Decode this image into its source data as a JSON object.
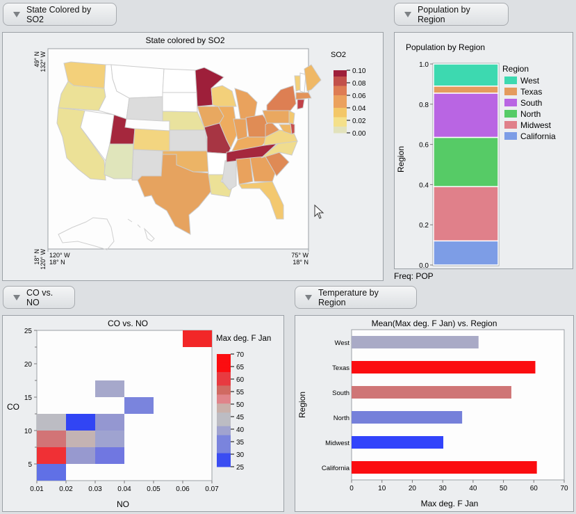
{
  "panels": {
    "so2": {
      "button_label": "State Colored by SO2",
      "title": "State colored by SO2"
    },
    "population": {
      "button_label": "Population by Region",
      "title": "Population by Region",
      "footer": "Freq: POP"
    },
    "co_no": {
      "button_label": "CO vs. NO",
      "title": "CO vs. NO"
    },
    "temperature": {
      "button_label": "Temperature by Region",
      "title": "Mean(Max deg. F Jan) vs. Region"
    }
  },
  "chart_data": [
    {
      "type": "map",
      "title": "State colored by SO2",
      "corner_labels": {
        "top_left": [
          "49° N",
          "132° W"
        ],
        "bottom_left": [
          "18° N",
          "120° W"
        ],
        "bottom_x_left": [
          "120° W",
          "18° N"
        ],
        "bottom_x_right": [
          "75° W",
          "18° N"
        ]
      },
      "legend": {
        "title": "SO2",
        "ticks": [
          "0.10",
          "0.08",
          "0.06",
          "0.04",
          "0.02",
          "0.00"
        ],
        "range": [
          0.0,
          0.1
        ],
        "colors": [
          "#e2e2bc",
          "#f4e08a",
          "#f3c768",
          "#eba15d",
          "#de7c53",
          "#c2504a",
          "#9e1f3a"
        ]
      },
      "states": [
        {
          "name": "WA",
          "so2": 0.035,
          "color": "#f3d07a"
        },
        {
          "name": "OR",
          "so2": 0.015,
          "color": "#ece197"
        },
        {
          "name": "CA",
          "so2": 0.015,
          "color": "#ece197"
        },
        {
          "name": "NV",
          "so2": null,
          "color": "#ffffff"
        },
        {
          "name": "ID",
          "so2": null,
          "color": "#ffffff"
        },
        {
          "name": "MT",
          "so2": null,
          "color": "#ffffff"
        },
        {
          "name": "WY",
          "so2": null,
          "color": "#dcdcdc"
        },
        {
          "name": "UT",
          "so2": 0.095,
          "color": "#a5273d"
        },
        {
          "name": "AZ",
          "so2": 0.005,
          "color": "#e0e5bb"
        },
        {
          "name": "CO",
          "so2": 0.03,
          "color": "#f3d580"
        },
        {
          "name": "NM",
          "so2": null,
          "color": "#dcdcdc"
        },
        {
          "name": "ND",
          "so2": null,
          "color": "#ffffff"
        },
        {
          "name": "SD",
          "so2": null,
          "color": "#ffffff"
        },
        {
          "name": "NE",
          "so2": 0.015,
          "color": "#e9e29e"
        },
        {
          "name": "KS",
          "so2": null,
          "color": "#dcdcdc"
        },
        {
          "name": "OK",
          "so2": 0.045,
          "color": "#ecb466"
        },
        {
          "name": "TX",
          "so2": 0.055,
          "color": "#e6a35f"
        },
        {
          "name": "MN",
          "so2": 0.1,
          "color": "#9e1f3a"
        },
        {
          "name": "IA",
          "so2": 0.055,
          "color": "#e8a860"
        },
        {
          "name": "MO",
          "so2": 0.09,
          "color": "#a73543"
        },
        {
          "name": "AR",
          "so2": null,
          "color": "#ffffff"
        },
        {
          "name": "LA",
          "so2": 0.015,
          "color": "#ece197"
        },
        {
          "name": "WI",
          "so2": 0.03,
          "color": "#f3d07a"
        },
        {
          "name": "IL",
          "so2": 0.05,
          "color": "#eeac5f"
        },
        {
          "name": "MS",
          "so2": null,
          "color": "#dcdcdc"
        },
        {
          "name": "MI",
          "so2": 0.055,
          "color": "#e9a25d"
        },
        {
          "name": "IN",
          "so2": 0.055,
          "color": "#e9a25d"
        },
        {
          "name": "KY",
          "so2": 0.05,
          "color": "#eeac5f"
        },
        {
          "name": "TN",
          "so2": 0.095,
          "color": "#a5273d"
        },
        {
          "name": "AL",
          "so2": 0.055,
          "color": "#e9a25d"
        },
        {
          "name": "OH",
          "so2": 0.065,
          "color": "#e08c55"
        },
        {
          "name": "GA",
          "so2": 0.055,
          "color": "#e9a25d"
        },
        {
          "name": "FL",
          "so2": 0.035,
          "color": "#f3c86f"
        },
        {
          "name": "SC",
          "so2": 0.065,
          "color": "#df8a55"
        },
        {
          "name": "NC",
          "so2": 0.02,
          "color": "#f0dc8e"
        },
        {
          "name": "VA",
          "so2": 0.025,
          "color": "#f2d785"
        },
        {
          "name": "WV",
          "so2": 0.06,
          "color": "#e3935a"
        },
        {
          "name": "PA",
          "so2": 0.055,
          "color": "#eaa860"
        },
        {
          "name": "NY",
          "so2": 0.07,
          "color": "#dd7f53"
        },
        {
          "name": "VT",
          "so2": 0.03,
          "color": "#f3d07a"
        },
        {
          "name": "NH",
          "so2": null,
          "color": "#ffffff"
        },
        {
          "name": "ME",
          "so2": 0.045,
          "color": "#efb866"
        },
        {
          "name": "MA",
          "so2": 0.06,
          "color": "#e3935a"
        },
        {
          "name": "CT",
          "so2": 0.085,
          "color": "#c14148"
        },
        {
          "name": "NJ",
          "so2": 0.035,
          "color": "#f3c86f"
        },
        {
          "name": "MD",
          "so2": 0.045,
          "color": "#efb866"
        },
        {
          "name": "DE",
          "so2": 0.08,
          "color": "#c94f4c"
        }
      ]
    },
    {
      "type": "stacked-bar",
      "title": "Population by Region",
      "ylabel": "Region",
      "footer": "Freq: POP",
      "ylim": [
        0,
        1.0
      ],
      "yticks": [
        "0.0",
        "0.2",
        "0.4",
        "0.6",
        "0.8",
        "1.0"
      ],
      "legend_title": "Region",
      "series": [
        {
          "name": "California",
          "share": 0.12,
          "color": "#7d9de6"
        },
        {
          "name": "Midwest",
          "share": 0.27,
          "color": "#e0808a"
        },
        {
          "name": "North",
          "share": 0.245,
          "color": "#56cb66"
        },
        {
          "name": "South",
          "share": 0.22,
          "color": "#b965e3"
        },
        {
          "name": "Texas",
          "share": 0.035,
          "color": "#e49b5d"
        },
        {
          "name": "West",
          "share": 0.11,
          "color": "#3dd9b0"
        }
      ],
      "legend_order": [
        "West",
        "Texas",
        "South",
        "North",
        "Midwest",
        "California"
      ]
    },
    {
      "type": "heatmap",
      "title": "CO vs. NO",
      "xlabel": "NO",
      "ylabel": "CO",
      "xlim": [
        0.01,
        0.07
      ],
      "ylim": [
        2.5,
        25
      ],
      "xticks": [
        "0.01",
        "0.02",
        "0.03",
        "0.04",
        "0.05",
        "0.06",
        "0.07"
      ],
      "yticks": [
        "5",
        "10",
        "15",
        "20",
        "25"
      ],
      "bin_width_x": 0.01,
      "bin_height_y": 2.5,
      "color_legend": {
        "title": "Max deg. F Jan",
        "ticks": [
          "70",
          "65",
          "60",
          "55",
          "50",
          "45",
          "40",
          "35",
          "30",
          "25"
        ],
        "range": [
          25,
          70
        ]
      },
      "cells": [
        {
          "x0": 0.01,
          "y0": 2.5,
          "value": 35,
          "color": "#6070e6"
        },
        {
          "x0": 0.01,
          "y0": 5.0,
          "value": 68,
          "color": "#f03035"
        },
        {
          "x0": 0.01,
          "y0": 7.5,
          "value": 58,
          "color": "#d27476"
        },
        {
          "x0": 0.01,
          "y0": 10.0,
          "value": 48,
          "color": "#bcbcc3"
        },
        {
          "x0": 0.02,
          "y0": 5.0,
          "value": 42,
          "color": "#9799cf"
        },
        {
          "x0": 0.02,
          "y0": 7.5,
          "value": 51,
          "color": "#c4b3b3"
        },
        {
          "x0": 0.02,
          "y0": 10.0,
          "value": 28,
          "color": "#3145f4"
        },
        {
          "x0": 0.03,
          "y0": 5.0,
          "value": 37,
          "color": "#7077e1"
        },
        {
          "x0": 0.03,
          "y0": 7.5,
          "value": 44,
          "color": "#9fa3d0"
        },
        {
          "x0": 0.03,
          "y0": 10.0,
          "value": 42,
          "color": "#9497d1"
        },
        {
          "x0": 0.03,
          "y0": 15.0,
          "value": 45,
          "color": "#a6a8cb"
        },
        {
          "x0": 0.04,
          "y0": 12.5,
          "value": 38,
          "color": "#7a84dd"
        },
        {
          "x0": 0.06,
          "y0": 22.5,
          "value": 67,
          "color": "#f22728"
        }
      ]
    },
    {
      "type": "bar",
      "orientation": "horizontal",
      "title": "Mean(Max deg. F Jan) vs. Region",
      "xlabel": "Max deg. F Jan",
      "ylabel": "Region",
      "xlim": [
        0,
        70
      ],
      "xticks": [
        "0",
        "10",
        "20",
        "30",
        "40",
        "50",
        "60",
        "70"
      ],
      "categories": [
        "West",
        "Texas",
        "South",
        "North",
        "Midwest",
        "California"
      ],
      "values": [
        41.8,
        60.5,
        52.6,
        36.4,
        30.2,
        61.0
      ],
      "colors": [
        "#a9aac6",
        "#fb0d10",
        "#cf7576",
        "#7580da",
        "#3143fb",
        "#fb0d10"
      ]
    }
  ],
  "cursor": "arrow-pointer"
}
